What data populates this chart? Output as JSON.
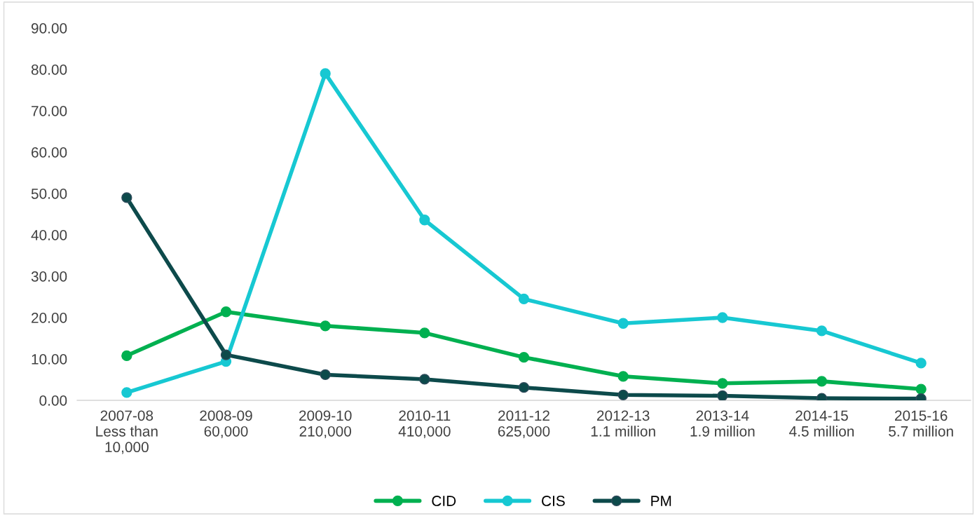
{
  "chart_data": {
    "type": "line",
    "categories": [
      "2007-08\nLess than\n10,000",
      "2008-09\n60,000",
      "2009-10\n210,000",
      "2010-11\n410,000",
      "2011-12\n625,000",
      "2012-13\n1.1 million",
      "2013-14\n1.9 million",
      "2014-15\n4.5 million",
      "2015-16\n5.7 million"
    ],
    "series": [
      {
        "name": "CID",
        "color": "#00b050",
        "values": [
          10.8,
          21.4,
          18.0,
          16.3,
          10.4,
          5.8,
          4.1,
          4.6,
          2.7
        ]
      },
      {
        "name": "CIS",
        "color": "#17c8d2",
        "values": [
          1.9,
          9.4,
          79.0,
          43.6,
          24.5,
          18.6,
          20.0,
          16.8,
          9.0
        ]
      },
      {
        "name": "PM",
        "color": "#0d4a4b",
        "values": [
          49.0,
          11.0,
          6.2,
          5.1,
          3.1,
          1.3,
          1.1,
          0.5,
          0.4
        ]
      }
    ],
    "ylim": [
      0,
      90
    ],
    "yticks": [
      {
        "value": 0,
        "label": "0.00"
      },
      {
        "value": 10,
        "label": "10.00"
      },
      {
        "value": 20,
        "label": "20.00"
      },
      {
        "value": 30,
        "label": "30.00"
      },
      {
        "value": 40,
        "label": "40.00"
      },
      {
        "value": 50,
        "label": "50.00"
      },
      {
        "value": 60,
        "label": "60.00"
      },
      {
        "value": 70,
        "label": "70.00"
      },
      {
        "value": 80,
        "label": "80.00"
      },
      {
        "value": 90,
        "label": "90.00"
      }
    ],
    "grid": false,
    "legend": "bottom",
    "marker": "circle",
    "line_style": "solid"
  }
}
